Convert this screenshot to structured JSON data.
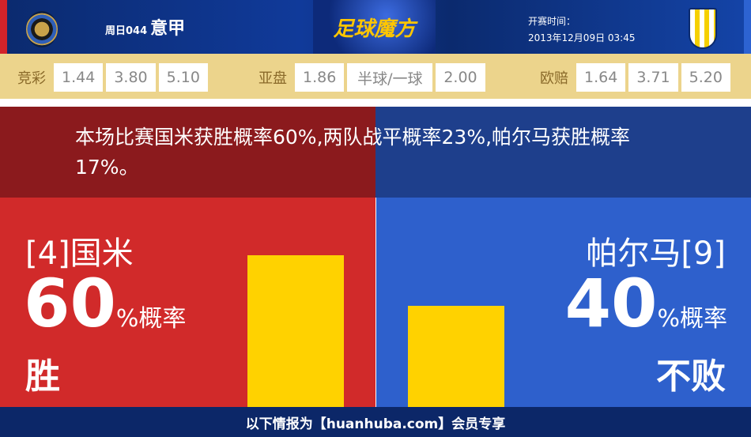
{
  "header": {
    "league_no": "周日044",
    "league": "意甲",
    "brand": "足球魔方",
    "time_label": "开赛时间：",
    "time": "2013年12月09日 03:45",
    "home_logo": "inter-logo",
    "away_logo": "parma-logo"
  },
  "odds": {
    "jingcai": {
      "label": "竞彩",
      "values": [
        "1.44",
        "3.80",
        "5.10"
      ]
    },
    "yapan": {
      "label": "亚盘",
      "values": [
        "1.86",
        "半球/一球",
        "2.00"
      ]
    },
    "oupei": {
      "label": "欧赔",
      "values": [
        "1.64",
        "3.71",
        "5.20"
      ]
    }
  },
  "summary": "本场比赛国米获胜概率60%,两队战平概率23%,帕尔马获胜概率17%。",
  "home": {
    "team": "[4]国米",
    "pct": "60",
    "pct_suffix": "%概率",
    "result": "胜",
    "bar_value": 60,
    "color": "#d12a2a"
  },
  "away": {
    "team": "帕尔马[9]",
    "pct": "40",
    "pct_suffix": "%概率",
    "result": "不败",
    "bar_value": 40,
    "color": "#2e60cc"
  },
  "footer": "以下情报为【huanhuba.com】会员专享"
}
